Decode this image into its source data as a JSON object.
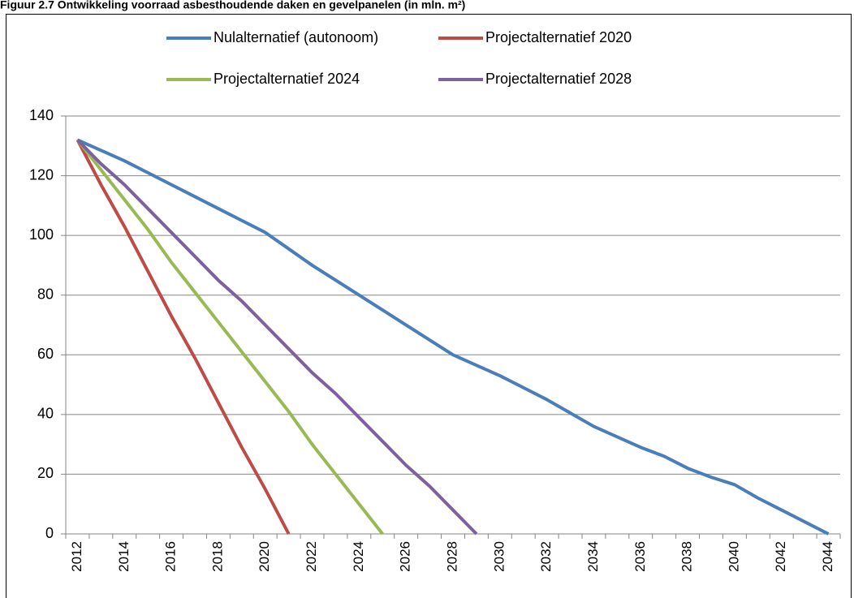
{
  "chart_data": {
    "type": "line",
    "title": "Figuur 2.7 Ontwikkeling voorraad asbesthoudende daken en gevelpanelen (in mln. m²)",
    "categories": [
      "2012",
      null,
      "2014",
      null,
      "2016",
      null,
      "2018",
      null,
      "2020",
      null,
      "2022",
      null,
      "2024",
      null,
      "2026",
      null,
      "2028",
      null,
      "2030",
      null,
      "2032",
      null,
      "2034",
      null,
      "2036",
      null,
      "2038",
      null,
      "2040",
      null,
      "2042",
      null,
      "2044"
    ],
    "series": [
      {
        "name": "Nulalternatief (autonoom)",
        "color": "#4a7ebb",
        "values": [
          132,
          128.5,
          125,
          121,
          117,
          113,
          109,
          105,
          101,
          95.5,
          90,
          85,
          80,
          75,
          70,
          65,
          60,
          56.5,
          53,
          49,
          45,
          40.5,
          36,
          32.5,
          29,
          26,
          22,
          19,
          16.5,
          12,
          8,
          4,
          0
        ]
      },
      {
        "name": "Projectalternatief 2020",
        "color": "#be4b48",
        "values": [
          132,
          117,
          103,
          88,
          73,
          59,
          44,
          29,
          15,
          0,
          null,
          null,
          null,
          null,
          null,
          null,
          null,
          null,
          null,
          null,
          null,
          null,
          null,
          null,
          null,
          null,
          null,
          null,
          null,
          null,
          null,
          null,
          null
        ]
      },
      {
        "name": "Projectalternatief 2024",
        "color": "#98b954",
        "values": [
          132,
          122,
          112,
          102,
          91,
          81,
          71,
          61,
          51,
          41,
          30,
          20,
          10,
          0,
          null,
          null,
          null,
          null,
          null,
          null,
          null,
          null,
          null,
          null,
          null,
          null,
          null,
          null,
          null,
          null,
          null,
          null,
          null
        ]
      },
      {
        "name": "Projectalternatief 2028",
        "color": "#7d60a0",
        "values": [
          132,
          124,
          117,
          109,
          101,
          93,
          85,
          78,
          70,
          62,
          54,
          47,
          39,
          31,
          23,
          16,
          8,
          0,
          null,
          null,
          null,
          null,
          null,
          null,
          null,
          null,
          null,
          null,
          null,
          null,
          null,
          null,
          null
        ]
      }
    ],
    "ylim": [
      0,
      140
    ],
    "yticks": [
      0,
      20,
      40,
      60,
      80,
      100,
      120,
      140
    ],
    "grid": true
  }
}
